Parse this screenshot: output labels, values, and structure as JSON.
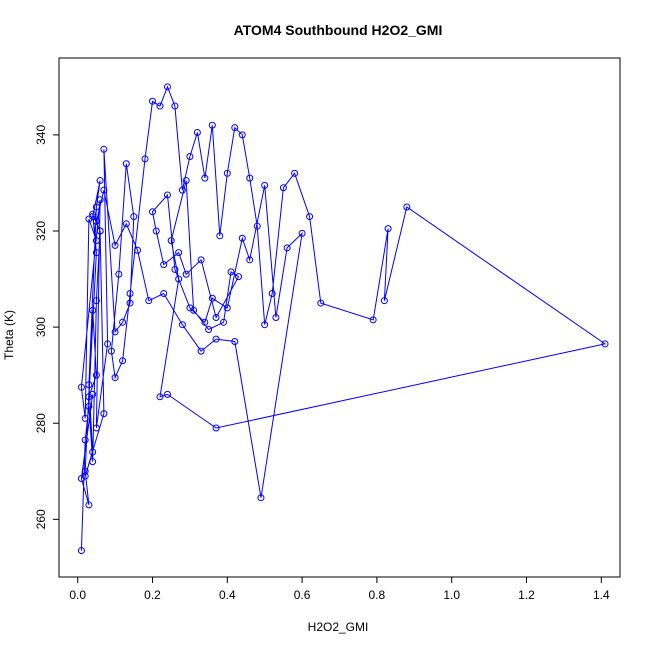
{
  "chart_data": {
    "type": "line",
    "title": "ATOM4 Southbound H2O2_GMI",
    "xlabel": "H2O2_GMI",
    "ylabel": "Theta (K)",
    "xlim": [
      -0.05,
      1.45
    ],
    "ylim": [
      248,
      356
    ],
    "xticks": [
      0.0,
      0.2,
      0.4,
      0.6,
      0.8,
      1.0,
      1.2,
      1.4
    ],
    "xtick_labels": [
      "0.0",
      "0.2",
      "0.4",
      "0.6",
      "0.8",
      "1.0",
      "1.2",
      "1.4"
    ],
    "yticks": [
      260,
      280,
      300,
      320,
      340
    ],
    "ytick_labels": [
      "260",
      "280",
      "300",
      "320",
      "340"
    ],
    "grid": false,
    "legend": "none",
    "series": [
      {
        "color": "#0000ff",
        "marker": "open-circle",
        "x": [
          0.01,
          0.02,
          0.03,
          0.04,
          0.05,
          0.06,
          0.07,
          0.02,
          0.04,
          0.03,
          0.05,
          0.06,
          0.04,
          0.05,
          0.03,
          0.02,
          0.01,
          0.06,
          0.05,
          0.08,
          0.07,
          0.1,
          0.12,
          0.14,
          0.15,
          0.13,
          0.11,
          0.09,
          0.1,
          0.12,
          0.14,
          0.18,
          0.2,
          0.22,
          0.24,
          0.26,
          0.28,
          0.3,
          0.32,
          0.34,
          0.36,
          0.38,
          0.4,
          0.42,
          0.44,
          0.46,
          0.48,
          0.5,
          0.52,
          0.55,
          0.58,
          0.62,
          0.65,
          0.79,
          0.83,
          0.82,
          0.88,
          1.41,
          0.37,
          0.24,
          0.22,
          0.27,
          0.25,
          0.29,
          0.31,
          0.35,
          0.39,
          0.41,
          0.43,
          0.37,
          0.33,
          0.29,
          0.27,
          0.23,
          0.21,
          0.2,
          0.24,
          0.26,
          0.3,
          0.34,
          0.36,
          0.4,
          0.44,
          0.46,
          0.5,
          0.53,
          0.56,
          0.6,
          0.49,
          0.42,
          0.37,
          0.33,
          0.28,
          0.23,
          0.19,
          0.16,
          0.13,
          0.1,
          0.07,
          0.05,
          0.06,
          0.04,
          0.05,
          0.03,
          0.05,
          0.04,
          0.02,
          0.03,
          0.01,
          0.04
        ],
        "y": [
          253.5,
          276.5,
          283.5,
          272,
          305.5,
          320,
          282,
          269,
          274,
          288,
          325,
          330.5,
          323,
          318,
          322.5,
          281,
          287.5,
          326.5,
          279,
          296.5,
          337,
          299,
          301,
          305,
          323,
          334,
          311,
          295,
          289.5,
          293,
          307,
          335,
          347,
          346,
          350,
          346,
          328.5,
          335.5,
          340.5,
          331,
          342,
          319,
          332,
          341.5,
          340,
          331,
          321,
          300.5,
          307,
          329,
          332,
          323,
          305,
          301.5,
          320.5,
          305.5,
          325,
          296.5,
          279,
          286,
          285.5,
          310,
          318,
          330.5,
          303.5,
          299.5,
          301,
          311.5,
          310.5,
          302,
          314,
          311,
          315.5,
          313,
          320,
          324,
          327.5,
          312,
          304,
          301,
          306,
          304,
          318.5,
          314,
          329.5,
          302,
          316.5,
          319.5,
          264.5,
          297,
          297.5,
          295,
          300.5,
          307,
          305.5,
          316,
          321.5,
          317,
          328.5,
          322,
          320,
          323.5,
          315.5,
          285.5,
          290,
          303.5,
          270,
          263,
          268.5,
          286
        ]
      }
    ]
  }
}
